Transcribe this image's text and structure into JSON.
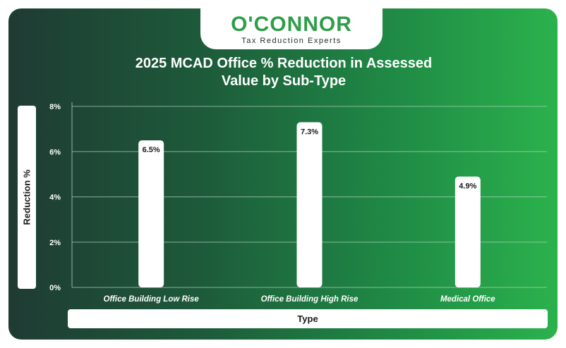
{
  "logo": {
    "name": "O'CONNOR",
    "tagline": "Tax Reduction Experts"
  },
  "colors": {
    "brand_green": "#2f9d49",
    "bar_fill": "#ffffff",
    "grid": "#b7d3c0"
  },
  "chart_data": {
    "type": "bar",
    "title": "2025 MCAD Office % Reduction in Assessed Value by Sub-Type",
    "title_lines": [
      "2025 MCAD Office % Reduction in Assessed",
      "Value by Sub-Type"
    ],
    "xlabel": "Type",
    "ylabel": "Reduction %",
    "categories": [
      "Office Building Low Rise",
      "Office Building High Rise",
      "Medical Office"
    ],
    "values": [
      6.5,
      7.3,
      4.9
    ],
    "value_labels": [
      "6.5%",
      "7.3%",
      "4.9%"
    ],
    "ylim": [
      0,
      8
    ],
    "yticks": [
      0,
      2,
      4,
      6,
      8
    ],
    "ytick_labels": [
      "0%",
      "2%",
      "4%",
      "6%",
      "8%"
    ],
    "grid": true
  }
}
